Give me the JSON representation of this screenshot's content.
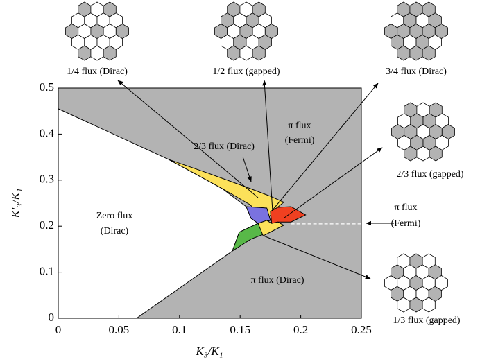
{
  "chart_data": {
    "type": "phase",
    "xlabel": "K₃/K₁",
    "ylabel": "K′₃/K₁",
    "xlim": [
      0,
      0.25
    ],
    "ylim": [
      0,
      0.5
    ],
    "xticks": [
      0,
      0.05,
      0.1,
      0.15,
      0.2,
      0.25
    ],
    "yticks": [
      0,
      0.1,
      0.2,
      0.3,
      0.4,
      0.5
    ],
    "background_color": "#b3b3b3",
    "regions": [
      {
        "color": "#ffffff",
        "x": [
          0,
          0.091,
          0.112,
          0.135,
          0.155,
          0.159,
          0.1648,
          0.1493,
          0.1436,
          0.0646,
          0
        ],
        "y": [
          0.455,
          0.345,
          0.315,
          0.282,
          0.2425,
          0.217,
          0.206,
          0.187,
          0.146,
          0,
          0
        ]
      },
      {
        "color": "#fce15a",
        "x": [
          0.091,
          0.1236,
          0.155,
          0.175,
          0.186,
          0.178,
          0.172,
          0.158,
          0.135,
          0.112
        ],
        "y": [
          0.345,
          0.315,
          0.285,
          0.265,
          0.252,
          0.235,
          0.2125,
          0.247,
          0.282,
          0.315
        ]
      },
      {
        "color": "#7a72e0",
        "x": [
          0.155,
          0.172,
          0.175,
          0.1648,
          0.159
        ],
        "y": [
          0.2425,
          0.2395,
          0.2125,
          0.206,
          0.217
        ]
      },
      {
        "color": "#58b848",
        "x": [
          0.1493,
          0.1648,
          0.169,
          0.159,
          0.1436
        ],
        "y": [
          0.187,
          0.206,
          0.182,
          0.172,
          0.146
        ]
      },
      {
        "color": "#f04020",
        "x": [
          0.175,
          0.181,
          0.192,
          0.204,
          0.192,
          0.181,
          0.176
        ],
        "y": [
          0.232,
          0.241,
          0.2425,
          0.2245,
          0.209,
          0.209,
          0.206
        ]
      },
      {
        "color": "#fce15a",
        "x": [
          0.172,
          0.176,
          0.181,
          0.186,
          0.169,
          0.1648
        ],
        "y": [
          0.2125,
          0.206,
          0.209,
          0.202,
          0.179,
          0.206
        ]
      }
    ],
    "dashed_line": {
      "x": [
        0.192,
        0.25
      ],
      "y": [
        0.205,
        0.205
      ]
    },
    "annotations": [
      "Zero flux",
      "(Dirac)",
      "π flux",
      "(Fermi)",
      "2/3 flux (Dirac)",
      "π flux (Dirac)"
    ],
    "insets": [
      "1/4 flux (Dirac)",
      "1/2 flux (gapped)",
      "3/4 flux (Dirac)",
      "2/3 flux (gapped)",
      "π flux",
      "(Fermi)",
      "1/3 flux (gapped)"
    ]
  }
}
